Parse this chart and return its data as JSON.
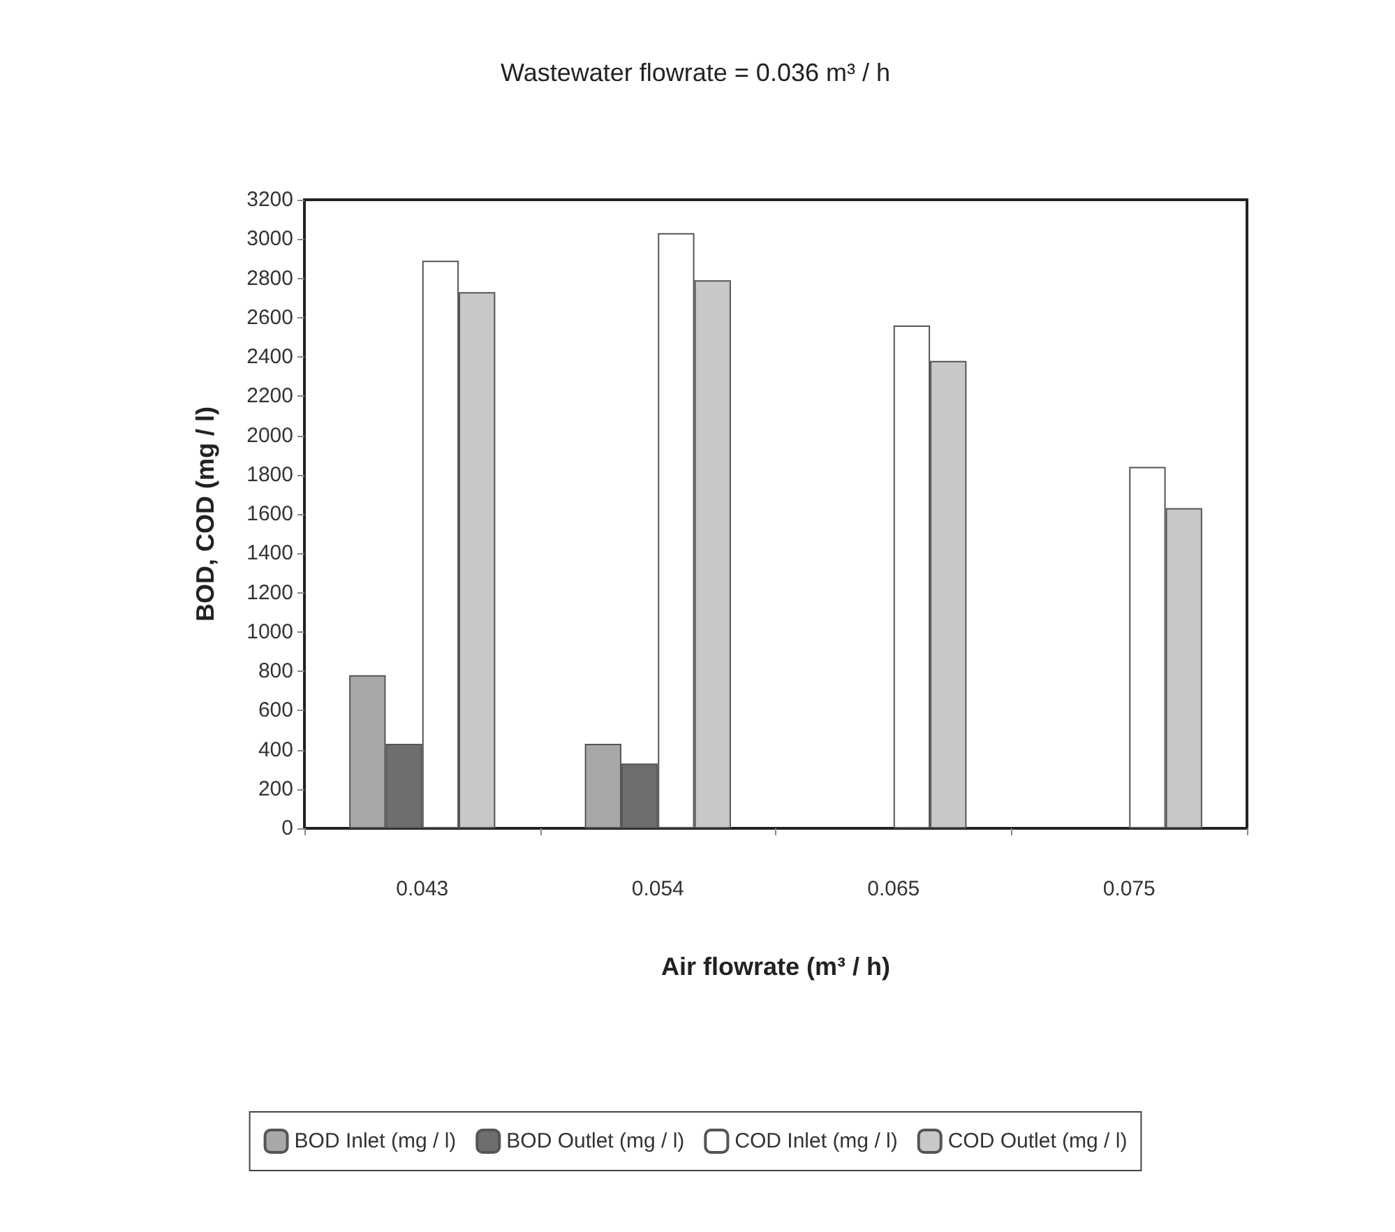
{
  "chart_data": {
    "type": "bar",
    "title": "Wastewater flowrate = 0.036 m³ / h",
    "xlabel": "Air flowrate (m³ / h)",
    "ylabel": "BOD, COD (mg / l)",
    "categories": [
      "0.043",
      "0.054",
      "0.065",
      "0.075"
    ],
    "series": [
      {
        "name": "BOD Inlet (mg / l)",
        "color": "#a8a8a8",
        "values": [
          780,
          430,
          null,
          null
        ]
      },
      {
        "name": "BOD Outlet (mg / l)",
        "color": "#6e6e6e",
        "values": [
          430,
          330,
          null,
          null
        ]
      },
      {
        "name": "COD Inlet (mg / l)",
        "color": "#ffffff",
        "values": [
          2890,
          3030,
          2560,
          1840
        ]
      },
      {
        "name": "COD Outlet (mg / l)",
        "color": "#c8c8c8",
        "values": [
          2730,
          2790,
          2380,
          1630
        ]
      }
    ],
    "ylim": [
      0,
      3200
    ],
    "yticks": [
      0,
      200,
      400,
      600,
      800,
      1000,
      1200,
      1400,
      1600,
      1800,
      2000,
      2200,
      2400,
      2600,
      2800,
      3000,
      3200
    ],
    "grid": false,
    "legend": "bottom"
  }
}
